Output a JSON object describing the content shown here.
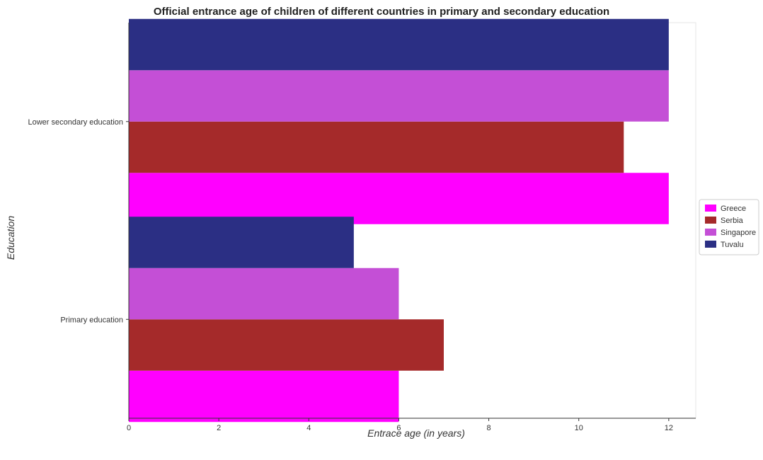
{
  "title": "Official entrance age of children of different countries in primary and secondary education",
  "colors": {
    "Greece": "#ff00ff",
    "Serbia": "#a52a2a",
    "Singapore": "#c44fd6",
    "Tuvalu": "#2b2f84"
  },
  "chart_data": {
    "type": "bar",
    "orientation": "horizontal",
    "title": "Official entrance age of children of different countries in primary and secondary education",
    "xlabel": "Entrace age (in  years)",
    "ylabel": "Education",
    "xlim": [
      0,
      12.6
    ],
    "xticks": [
      0,
      2,
      4,
      6,
      8,
      10,
      12
    ],
    "grid": false,
    "legend_position": "right",
    "categories": [
      "Lower secondary education",
      "Primary education"
    ],
    "series": [
      {
        "name": "Greece",
        "values": [
          12,
          6
        ]
      },
      {
        "name": "Serbia",
        "values": [
          11,
          7
        ]
      },
      {
        "name": "Singapore",
        "values": [
          12,
          6
        ]
      },
      {
        "name": "Tuvalu",
        "values": [
          12,
          5
        ]
      }
    ]
  }
}
